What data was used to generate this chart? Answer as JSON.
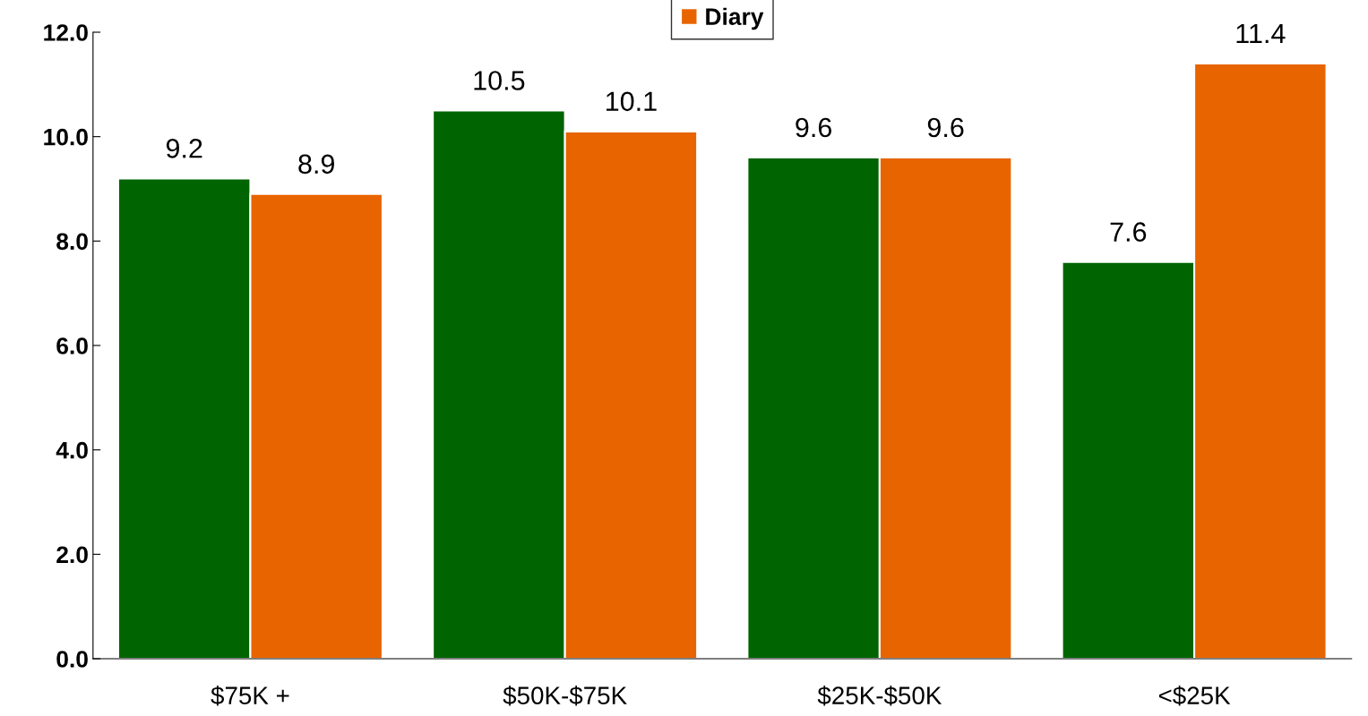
{
  "chart_data": {
    "type": "bar",
    "categories": [
      "$75K +",
      "$50K-$75K",
      "$25K-$50K",
      "<$25K"
    ],
    "series": [
      {
        "color": "#006400",
        "values": [
          9.2,
          10.5,
          9.6,
          7.6
        ]
      },
      {
        "name": "Diary",
        "color": "#e86400",
        "values": [
          8.9,
          10.1,
          9.6,
          11.4
        ]
      }
    ],
    "ylim": [
      0,
      12
    ],
    "yticks": [
      {
        "value": 0,
        "label": "0.0"
      },
      {
        "value": 2,
        "label": "2.0"
      },
      {
        "value": 4,
        "label": "4.0"
      },
      {
        "value": 6,
        "label": "6.0"
      },
      {
        "value": 8,
        "label": "8.0"
      },
      {
        "value": 10,
        "label": "10.0"
      },
      {
        "value": 12,
        "label": "12.0"
      }
    ],
    "data_labels": true,
    "legend": "top",
    "grid": false
  }
}
